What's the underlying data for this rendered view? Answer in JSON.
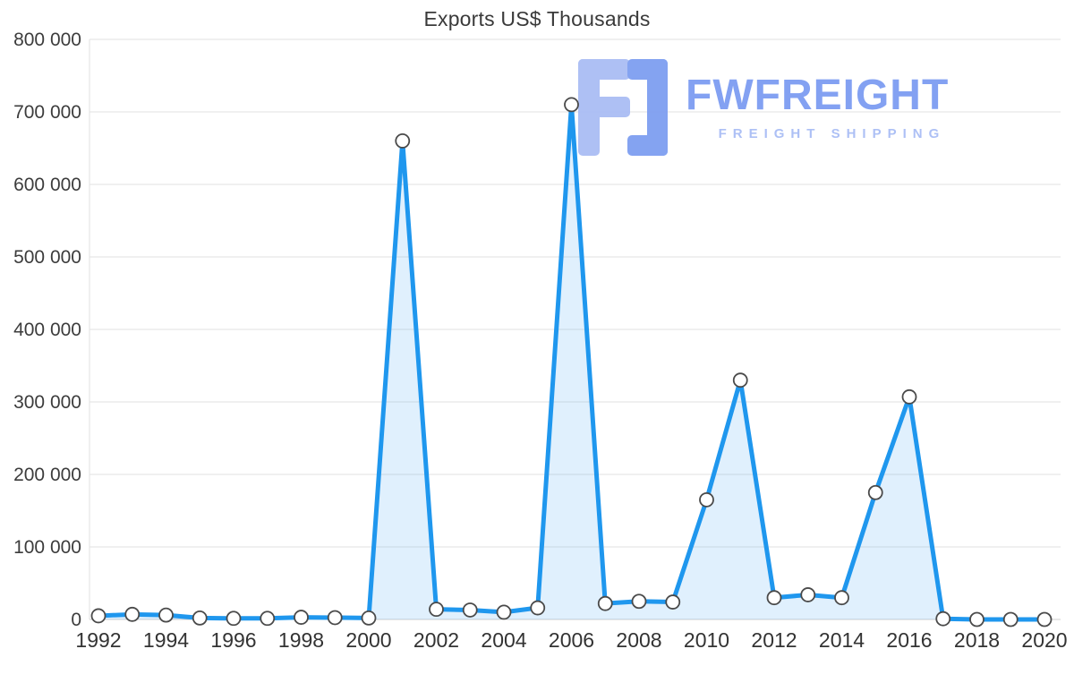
{
  "title": "Exports US$ Thousands",
  "watermark": {
    "name": "FWFREIGHT",
    "tagline": "FREIGHT SHIPPING",
    "color_primary": "#7d9df2",
    "color_secondary": "#a9bdf5",
    "icon_light": "#aabdf4",
    "icon_dark": "#7e9ff1"
  },
  "chart_data": {
    "type": "line",
    "title": "Exports US$ Thousands",
    "x": [
      1992,
      1993,
      1994,
      1995,
      1996,
      1997,
      1998,
      1999,
      2000,
      2001,
      2002,
      2003,
      2004,
      2005,
      2006,
      2007,
      2008,
      2009,
      2010,
      2011,
      2012,
      2013,
      2014,
      2015,
      2016,
      2017,
      2018,
      2019,
      2020
    ],
    "values": [
      5000,
      7000,
      6000,
      2000,
      1500,
      1500,
      3000,
      2500,
      2000,
      660000,
      14000,
      13000,
      10000,
      16000,
      710000,
      22000,
      25000,
      24000,
      165000,
      330000,
      30000,
      34000,
      30000,
      175000,
      307000,
      1000,
      0,
      0,
      0
    ],
    "ylim": [
      0,
      800000
    ],
    "ytick_step": 100000,
    "ytick_labels": [
      "0",
      "100 000",
      "200 000",
      "300 000",
      "400 000",
      "500 000",
      "600 000",
      "700 000",
      "800 000"
    ],
    "xtick_labels": [
      "1992",
      "1994",
      "1996",
      "1998",
      "2000",
      "2002",
      "2004",
      "2006",
      "2008",
      "2010",
      "2012",
      "2014",
      "2016",
      "2018",
      "2020"
    ],
    "grid": true,
    "legend": "none",
    "line_color": "#1f97ee",
    "area_color": "rgba(33,150,243,0.14)",
    "marker_fill": "#ffffff",
    "marker_stroke": "#4a4a4a",
    "grid_color": "#e2e2e2",
    "baseline_color": "#cfcfcf",
    "axis_text_color": "#3c3c3c"
  }
}
